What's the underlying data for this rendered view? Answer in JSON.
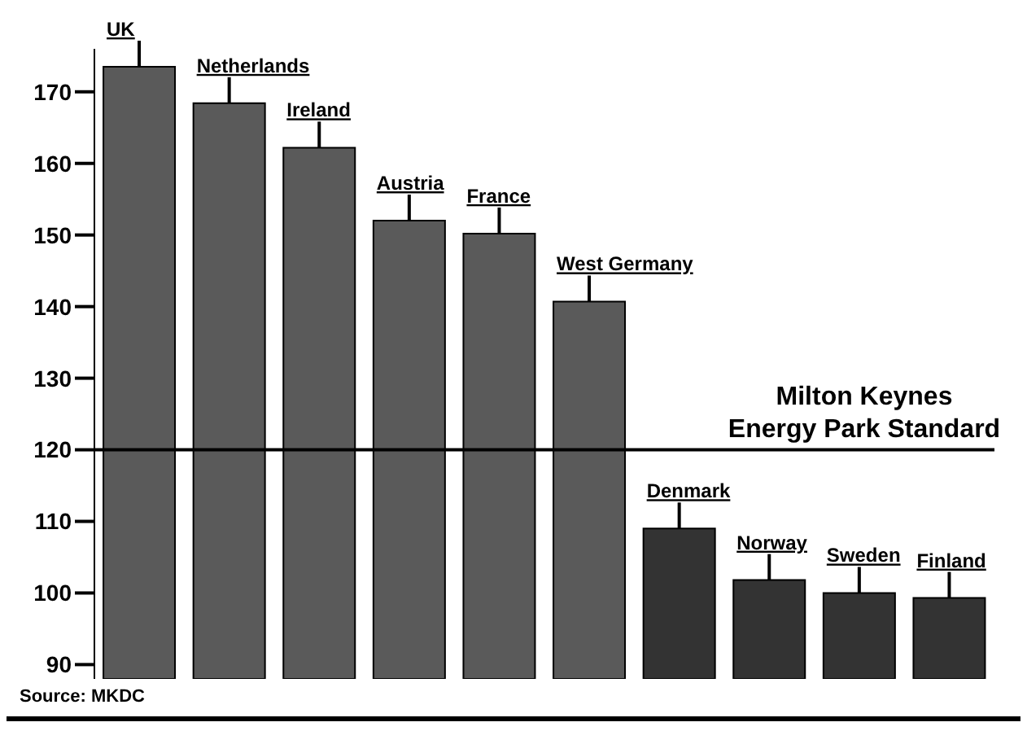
{
  "chart_data": {
    "type": "bar",
    "categories": [
      "UK",
      "Netherlands",
      "Ireland",
      "Austria",
      "France",
      "West Germany",
      "Denmark",
      "Norway",
      "Sweden",
      "Finland"
    ],
    "values": [
      173.5,
      168.4,
      162.2,
      152,
      150.2,
      140.7,
      109,
      101.8,
      100,
      99.3
    ],
    "colors": [
      "#5a5a5a",
      "#5a5a5a",
      "#5a5a5a",
      "#5a5a5a",
      "#5a5a5a",
      "#5a5a5a",
      "#333333",
      "#333333",
      "#333333",
      "#333333"
    ],
    "ylim": [
      88,
      176
    ],
    "yticks": [
      90,
      100,
      110,
      120,
      130,
      140,
      150,
      160,
      170
    ],
    "tick_labels": "y",
    "grid": false,
    "legend": false,
    "ref_lines": [
      {
        "axis": "y",
        "value": 120,
        "label": "Milton Keynes\nEnergy Park Standard",
        "color": "#000000"
      }
    ],
    "annotations": [
      "Source: MKDC"
    ]
  }
}
